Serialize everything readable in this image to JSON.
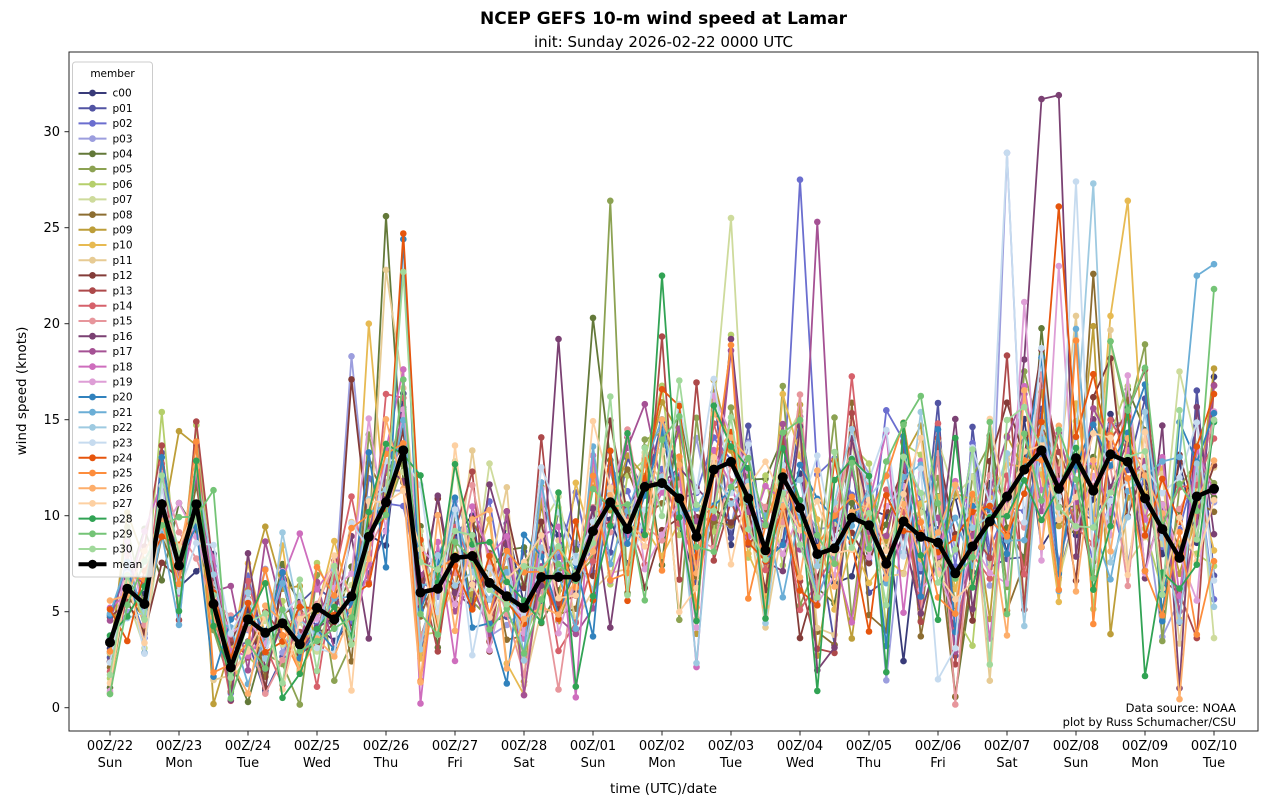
{
  "title": "NCEP GEFS 10-m wind speed at Lamar",
  "subtitle": "init: Sunday 2026-02-22 0000 UTC",
  "annotations": {
    "data_source": "Data source: NOAA",
    "credit": "plot by Russ Schumacher/CSU"
  },
  "legend": {
    "title": "member"
  },
  "chart_data": {
    "type": "line",
    "xlabel": "time (UTC)/date",
    "ylabel": "wind speed (knots)",
    "yticks": [
      0,
      5,
      10,
      15,
      20,
      25,
      30
    ],
    "ylim_visible": [
      -1.2,
      34.4
    ],
    "x_start": "2026-02-22 0000 UTC",
    "x_end": "2026-03-10 0000 UTC",
    "x_step_hours": 6,
    "n_steps": 65,
    "xtick_labels": [
      "00Z/22",
      "00Z/23",
      "00Z/24",
      "00Z/25",
      "00Z/26",
      "00Z/27",
      "00Z/28",
      "00Z/01",
      "00Z/02",
      "00Z/03",
      "00Z/04",
      "00Z/05",
      "00Z/06",
      "00Z/07",
      "00Z/08",
      "00Z/09",
      "00Z/10"
    ],
    "xtick_days": [
      "Sun",
      "Mon",
      "Tue",
      "Wed",
      "Thu",
      "Fri",
      "Sat",
      "Sun",
      "Mon",
      "Tue",
      "Wed",
      "Thu",
      "Fri",
      "Sat",
      "Sun",
      "Mon",
      "Tue"
    ],
    "mean_series": {
      "name": "mean",
      "color": "#000000",
      "values": [
        3.4,
        6.2,
        5.4,
        10.6,
        7.4,
        10.6,
        5.4,
        2.1,
        4.6,
        3.9,
        4.4,
        3.3,
        5.2,
        4.6,
        5.8,
        8.9,
        10.7,
        13.4,
        6.0,
        6.2,
        7.8,
        7.9,
        6.5,
        5.8,
        5.2,
        6.8,
        6.8,
        6.8,
        9.2,
        10.7,
        9.3,
        11.5,
        11.7,
        10.9,
        8.9,
        12.4,
        12.8,
        10.9,
        8.2,
        12.0,
        10.4,
        8.0,
        8.3,
        9.9,
        9.5,
        7.5,
        9.7,
        8.9,
        8.6,
        7.0,
        8.4,
        9.7,
        11.0,
        12.4,
        13.4,
        11.4,
        13.0,
        11.3,
        13.2,
        12.8,
        10.9,
        9.3,
        7.8,
        11.0,
        11.4
      ]
    },
    "member_value_range": [
      0.1,
      31.9
    ],
    "members_note": "31 ensemble member traces; individual 6-hourly values approximated (synthesized around mean with observed extremes pinned)",
    "members": [
      {
        "name": "c00",
        "color": "#393b79",
        "seed": 1,
        "overrides": {}
      },
      {
        "name": "p01",
        "color": "#5254a3",
        "seed": 2,
        "overrides": {}
      },
      {
        "name": "p02",
        "color": "#6b6ecf",
        "seed": 3,
        "overrides": {
          "40": 27.5
        }
      },
      {
        "name": "p03",
        "color": "#9c9ede",
        "seed": 4,
        "overrides": {
          "14": 18.3,
          "52": 28.9
        }
      },
      {
        "name": "p04",
        "color": "#637939",
        "seed": 5,
        "overrides": {
          "8": 0.3,
          "16": 25.6,
          "28": 20.3
        }
      },
      {
        "name": "p05",
        "color": "#8ca252",
        "seed": 6,
        "overrides": {
          "29": 26.4
        }
      },
      {
        "name": "p06",
        "color": "#b5cf6b",
        "seed": 7,
        "overrides": {
          "3": 15.4
        }
      },
      {
        "name": "p07",
        "color": "#cedb9c",
        "seed": 8,
        "overrides": {
          "36": 25.5
        }
      },
      {
        "name": "p08",
        "color": "#8c6d31",
        "seed": 9,
        "overrides": {}
      },
      {
        "name": "p09",
        "color": "#bd9e39",
        "seed": 10,
        "overrides": {
          "4": 14.4,
          "6": 0.2
        }
      },
      {
        "name": "p10",
        "color": "#e7ba52",
        "seed": 11,
        "overrides": {
          "15": 20.0,
          "59": 26.4
        }
      },
      {
        "name": "p11",
        "color": "#e7cb94",
        "seed": 12,
        "overrides": {
          "16": 22.8
        }
      },
      {
        "name": "p12",
        "color": "#843c39",
        "seed": 13,
        "overrides": {
          "14": 17.1
        }
      },
      {
        "name": "p13",
        "color": "#ad494a",
        "seed": 14,
        "overrides": {
          "5": 14.9
        }
      },
      {
        "name": "p14",
        "color": "#d6616b",
        "seed": 15,
        "overrides": {}
      },
      {
        "name": "p15",
        "color": "#e7969c",
        "seed": 16,
        "overrides": {}
      },
      {
        "name": "p16",
        "color": "#7b4173",
        "seed": 17,
        "overrides": {
          "26": 19.2,
          "54": 31.7,
          "55": 31.9
        }
      },
      {
        "name": "p17",
        "color": "#a55194",
        "seed": 18,
        "overrides": {
          "41": 25.3
        }
      },
      {
        "name": "p18",
        "color": "#ce6dbd",
        "seed": 19,
        "overrides": {}
      },
      {
        "name": "p19",
        "color": "#de9ed6",
        "seed": 20,
        "overrides": {
          "55": 23.0
        }
      },
      {
        "name": "p20",
        "color": "#3182bd",
        "seed": 21,
        "overrides": {
          "17": 24.4
        }
      },
      {
        "name": "p21",
        "color": "#6baed6",
        "seed": 22,
        "overrides": {
          "63": 22.5,
          "64": 23.1
        }
      },
      {
        "name": "p22",
        "color": "#9ecae1",
        "seed": 23,
        "overrides": {
          "57": 27.3
        }
      },
      {
        "name": "p23",
        "color": "#c6dbef",
        "seed": 24,
        "overrides": {
          "52": 28.9,
          "56": 27.4
        }
      },
      {
        "name": "p24",
        "color": "#e6550d",
        "seed": 25,
        "overrides": {
          "17": 24.7,
          "55": 26.1
        }
      },
      {
        "name": "p25",
        "color": "#fd8d3c",
        "seed": 26,
        "overrides": {}
      },
      {
        "name": "p26",
        "color": "#fdae6b",
        "seed": 27,
        "overrides": {}
      },
      {
        "name": "p27",
        "color": "#fdd0a2",
        "seed": 28,
        "overrides": {}
      },
      {
        "name": "p28",
        "color": "#31a354",
        "seed": 29,
        "overrides": {
          "18": 12.1,
          "32": 22.5
        }
      },
      {
        "name": "p29",
        "color": "#74c476",
        "seed": 30,
        "overrides": {
          "64": 21.8
        }
      },
      {
        "name": "p30",
        "color": "#a1d99b",
        "seed": 31,
        "overrides": {
          "17": 22.7
        }
      }
    ]
  }
}
